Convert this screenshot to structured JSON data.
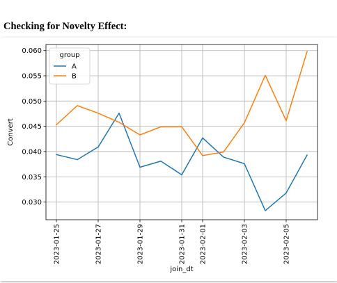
{
  "page": {
    "heading": "Checking for Novelty Effect:"
  },
  "chart_data": {
    "type": "line",
    "xlabel": "join_dt",
    "ylabel": "Convert",
    "ylim": [
      0.0265,
      0.0612
    ],
    "xlim": [
      "2023-01-24T12:00",
      "2023-02-06T12:00"
    ],
    "grid": true,
    "x_tick_labels": [
      "2023-01-25",
      "2023-01-27",
      "2023-01-29",
      "2023-01-31",
      "2023-02-01",
      "2023-02-03",
      "2023-02-05"
    ],
    "x_tick_values": [
      "2023-01-25",
      "2023-01-27",
      "2023-01-29",
      "2023-01-31",
      "2023-02-01",
      "2023-02-03",
      "2023-02-05"
    ],
    "y_tick_values": [
      0.03,
      0.035,
      0.04,
      0.045,
      0.05,
      0.055,
      0.06
    ],
    "y_tick_labels": [
      "0.030",
      "0.035",
      "0.040",
      "0.045",
      "0.050",
      "0.055",
      "0.060"
    ],
    "legend": {
      "title": "group",
      "placement": "top-left"
    },
    "x": [
      "2023-01-25",
      "2023-01-26",
      "2023-01-27",
      "2023-01-28",
      "2023-01-29",
      "2023-01-30",
      "2023-01-31",
      "2023-02-01",
      "2023-02-02",
      "2023-02-03",
      "2023-02-04",
      "2023-02-05",
      "2023-02-06"
    ],
    "series": [
      {
        "name": "A",
        "color": "#1f77b4",
        "values": [
          0.0394,
          0.0384,
          0.0409,
          0.0476,
          0.0369,
          0.0381,
          0.0354,
          0.0427,
          0.0389,
          0.0376,
          0.0283,
          0.0318,
          0.0393
        ]
      },
      {
        "name": "B",
        "color": "#ff7f0e",
        "values": [
          0.0453,
          0.0491,
          0.0476,
          0.0458,
          0.0433,
          0.0449,
          0.0449,
          0.0392,
          0.0399,
          0.0457,
          0.0551,
          0.0461,
          0.0598
        ]
      }
    ]
  }
}
